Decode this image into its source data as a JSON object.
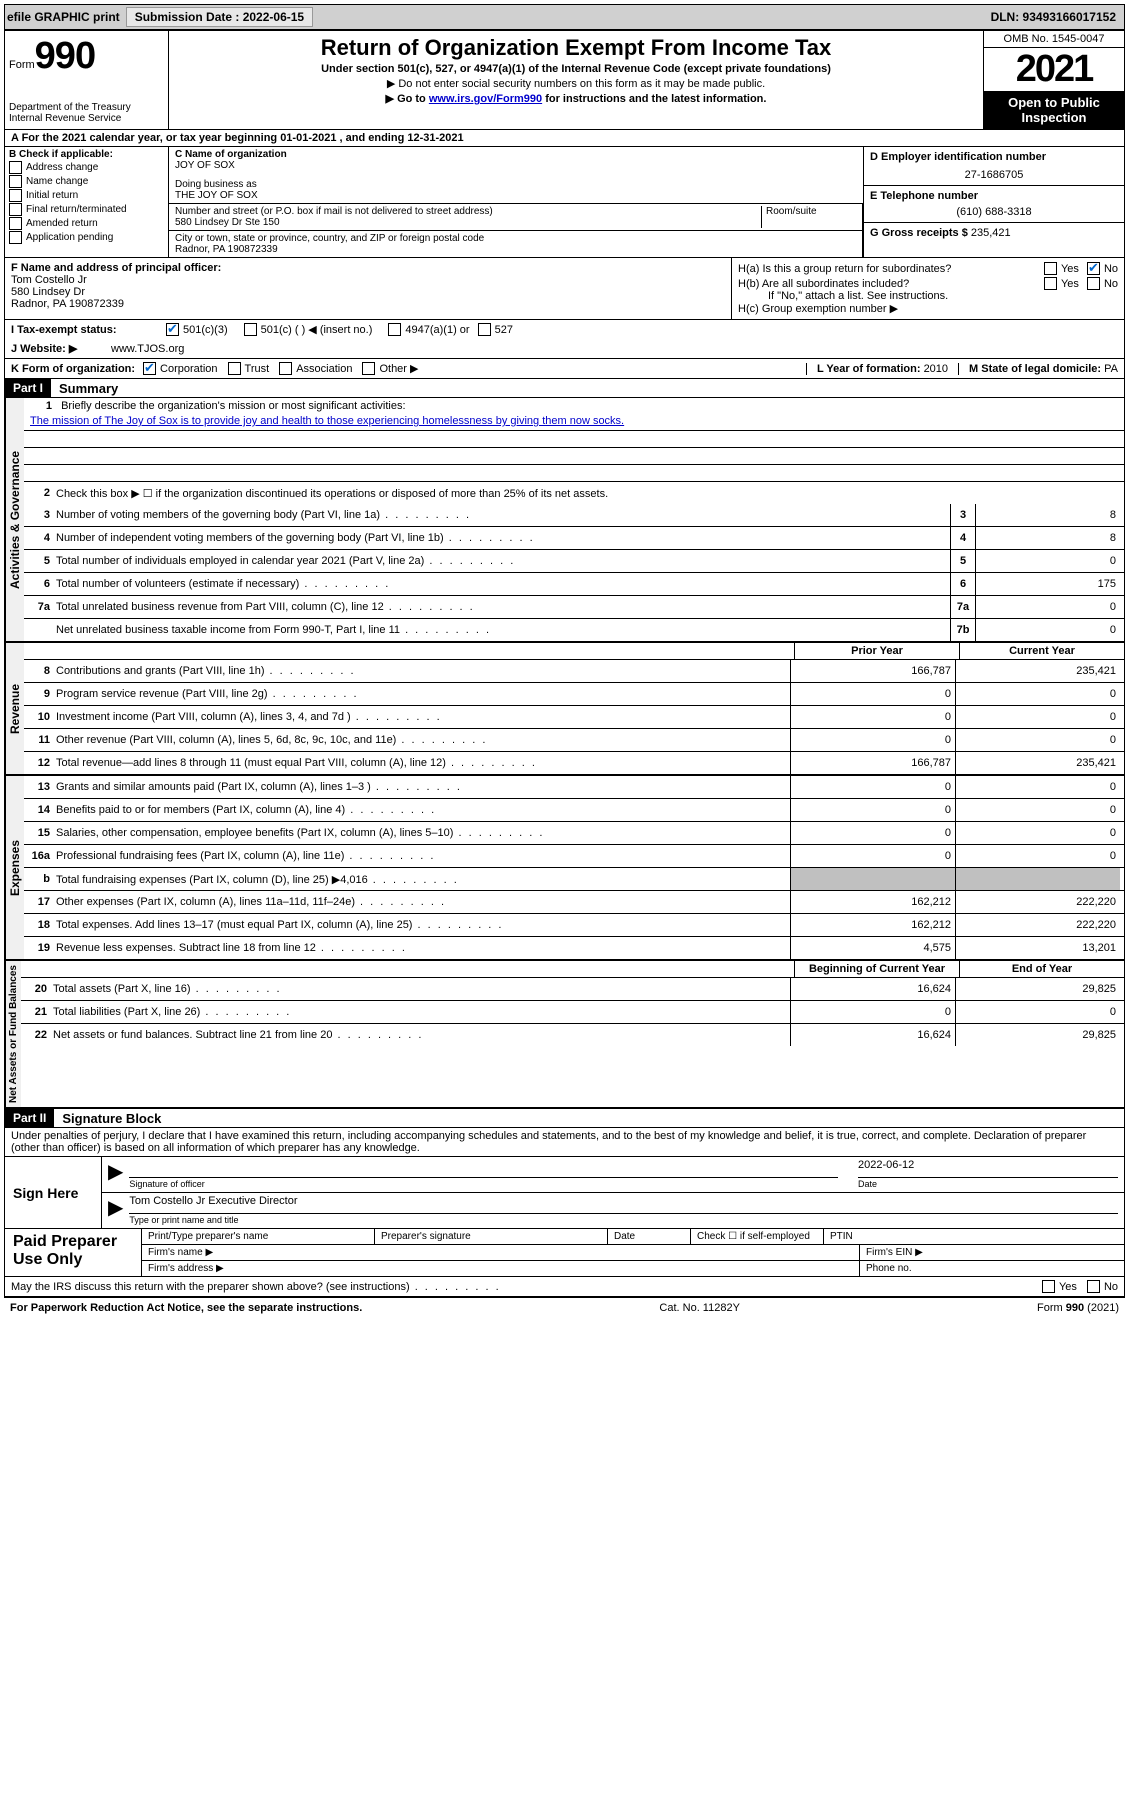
{
  "top": {
    "efile": "efile GRAPHIC print",
    "submission_label": "Submission Date : 2022-06-15",
    "dln": "DLN: 93493166017152"
  },
  "header": {
    "form_word": "Form",
    "form_num": "990",
    "dept": "Department of the Treasury",
    "irs": "Internal Revenue Service",
    "title": "Return of Organization Exempt From Income Tax",
    "sub": "Under section 501(c), 527, or 4947(a)(1) of the Internal Revenue Code (except private foundations)",
    "note1": "▶ Do not enter social security numbers on this form as it may be made public.",
    "note2_pre": "▶ Go to ",
    "note2_link": "www.irs.gov/Form990",
    "note2_post": " for instructions and the latest information.",
    "omb": "OMB No. 1545-0047",
    "year": "2021",
    "open": "Open to Public Inspection"
  },
  "a_line": "A For the 2021 calendar year, or tax year beginning 01-01-2021    , and ending 12-31-2021",
  "b": {
    "label": "B Check if applicable:",
    "items": [
      "Address change",
      "Name change",
      "Initial return",
      "Final return/terminated",
      "Amended return",
      "Application pending"
    ]
  },
  "c": {
    "label": "C Name of organization",
    "name": "JOY OF SOX",
    "dba_label": "Doing business as",
    "dba": "THE JOY OF SOX",
    "street_label": "Number and street (or P.O. box if mail is not delivered to street address)",
    "room_label": "Room/suite",
    "street": "580 Lindsey Dr Ste 150",
    "city_label": "City or town, state or province, country, and ZIP or foreign postal code",
    "city": "Radnor, PA  190872339"
  },
  "d": {
    "label": "D Employer identification number",
    "value": "27-1686705"
  },
  "e": {
    "label": "E Telephone number",
    "value": "(610) 688-3318"
  },
  "g": {
    "label": "G Gross receipts $",
    "value": "235,421"
  },
  "f": {
    "label": "F Name and address of principal officer:",
    "name": "Tom Costello Jr",
    "street": "580 Lindsey Dr",
    "city": "Radnor, PA  190872339"
  },
  "h": {
    "a": "H(a)  Is this a group return for subordinates?",
    "b": "H(b)  Are all subordinates included?",
    "note": "If \"No,\" attach a list. See instructions.",
    "c": "H(c)  Group exemption number ▶",
    "yes": "Yes",
    "no": "No"
  },
  "i": {
    "label": "I   Tax-exempt status:",
    "opts": [
      "501(c)(3)",
      "501(c) (   ) ◀ (insert no.)",
      "4947(a)(1) or",
      "527"
    ]
  },
  "j": {
    "label": "J   Website: ▶",
    "value": "www.TJOS.org"
  },
  "k": {
    "label": "K Form of organization:",
    "opts": [
      "Corporation",
      "Trust",
      "Association",
      "Other ▶"
    ]
  },
  "l": {
    "label": "L Year of formation:",
    "value": "2010"
  },
  "m": {
    "label": "M State of legal domicile:",
    "value": "PA"
  },
  "part1": {
    "label": "Part I",
    "title": "Summary"
  },
  "part2": {
    "label": "Part II",
    "title": "Signature Block"
  },
  "gov": {
    "label": "Activities & Governance",
    "q1": "Briefly describe the organization's mission or most significant activities:",
    "mission": "The mission of The Joy of Sox is to provide joy and health to those experiencing homelessness by giving them now socks.",
    "q2": "Check this box ▶ ☐  if the organization discontinued its operations or disposed of more than 25% of its net assets.",
    "rows": [
      {
        "n": "3",
        "t": "Number of voting members of the governing body (Part VI, line 1a)",
        "box": "3",
        "v": "8"
      },
      {
        "n": "4",
        "t": "Number of independent voting members of the governing body (Part VI, line 1b)",
        "box": "4",
        "v": "8"
      },
      {
        "n": "5",
        "t": "Total number of individuals employed in calendar year 2021 (Part V, line 2a)",
        "box": "5",
        "v": "0"
      },
      {
        "n": "6",
        "t": "Total number of volunteers (estimate if necessary)",
        "box": "6",
        "v": "175"
      },
      {
        "n": "7a",
        "t": "Total unrelated business revenue from Part VIII, column (C), line 12",
        "box": "7a",
        "v": "0"
      },
      {
        "n": "",
        "t": "Net unrelated business taxable income from Form 990-T, Part I, line 11",
        "box": "7b",
        "v": "0"
      }
    ]
  },
  "cols": {
    "prior": "Prior Year",
    "current": "Current Year",
    "begin": "Beginning of Current Year",
    "end": "End of Year"
  },
  "rev": {
    "label": "Revenue",
    "rows": [
      {
        "n": "8",
        "t": "Contributions and grants (Part VIII, line 1h)",
        "p": "166,787",
        "c": "235,421"
      },
      {
        "n": "9",
        "t": "Program service revenue (Part VIII, line 2g)",
        "p": "0",
        "c": "0"
      },
      {
        "n": "10",
        "t": "Investment income (Part VIII, column (A), lines 3, 4, and 7d )",
        "p": "0",
        "c": "0"
      },
      {
        "n": "11",
        "t": "Other revenue (Part VIII, column (A), lines 5, 6d, 8c, 9c, 10c, and 11e)",
        "p": "0",
        "c": "0"
      },
      {
        "n": "12",
        "t": "Total revenue—add lines 8 through 11 (must equal Part VIII, column (A), line 12)",
        "p": "166,787",
        "c": "235,421"
      }
    ]
  },
  "exp": {
    "label": "Expenses",
    "rows": [
      {
        "n": "13",
        "t": "Grants and similar amounts paid (Part IX, column (A), lines 1–3 )",
        "p": "0",
        "c": "0"
      },
      {
        "n": "14",
        "t": "Benefits paid to or for members (Part IX, column (A), line 4)",
        "p": "0",
        "c": "0"
      },
      {
        "n": "15",
        "t": "Salaries, other compensation, employee benefits (Part IX, column (A), lines 5–10)",
        "p": "0",
        "c": "0"
      },
      {
        "n": "16a",
        "t": "Professional fundraising fees (Part IX, column (A), line 11e)",
        "p": "0",
        "c": "0"
      },
      {
        "n": "b",
        "t": "Total fundraising expenses (Part IX, column (D), line 25) ▶4,016",
        "p": "",
        "c": "",
        "grey": true
      },
      {
        "n": "17",
        "t": "Other expenses (Part IX, column (A), lines 11a–11d, 11f–24e)",
        "p": "162,212",
        "c": "222,220"
      },
      {
        "n": "18",
        "t": "Total expenses. Add lines 13–17 (must equal Part IX, column (A), line 25)",
        "p": "162,212",
        "c": "222,220"
      },
      {
        "n": "19",
        "t": "Revenue less expenses. Subtract line 18 from line 12",
        "p": "4,575",
        "c": "13,201"
      }
    ]
  },
  "net": {
    "label": "Net Assets or Fund Balances",
    "rows": [
      {
        "n": "20",
        "t": "Total assets (Part X, line 16)",
        "p": "16,624",
        "c": "29,825"
      },
      {
        "n": "21",
        "t": "Total liabilities (Part X, line 26)",
        "p": "0",
        "c": "0"
      },
      {
        "n": "22",
        "t": "Net assets or fund balances. Subtract line 21 from line 20",
        "p": "16,624",
        "c": "29,825"
      }
    ]
  },
  "sig": {
    "decl": "Under penalties of perjury, I declare that I have examined this return, including accompanying schedules and statements, and to the best of my knowledge and belief, it is true, correct, and complete. Declaration of preparer (other than officer) is based on all information of which preparer has any knowledge.",
    "sign_here": "Sign Here",
    "sig_officer": "Signature of officer",
    "date_label": "Date",
    "date": "2022-06-12",
    "name_title": "Tom Costello Jr  Executive Director",
    "name_label": "Type or print name and title"
  },
  "prep": {
    "label": "Paid Preparer Use Only",
    "name": "Print/Type preparer's name",
    "sig": "Preparer's signature",
    "date": "Date",
    "check": "Check ☐ if self-employed",
    "ptin": "PTIN",
    "firm": "Firm's name    ▶",
    "ein": "Firm's EIN ▶",
    "addr": "Firm's address ▶",
    "phone": "Phone no."
  },
  "footer": {
    "discuss": "May the IRS discuss this return with the preparer shown above? (see instructions)",
    "paperwork": "For Paperwork Reduction Act Notice, see the separate instructions.",
    "cat": "Cat. No. 11282Y",
    "form": "Form 990 (2021)",
    "yes": "Yes",
    "no": "No"
  }
}
